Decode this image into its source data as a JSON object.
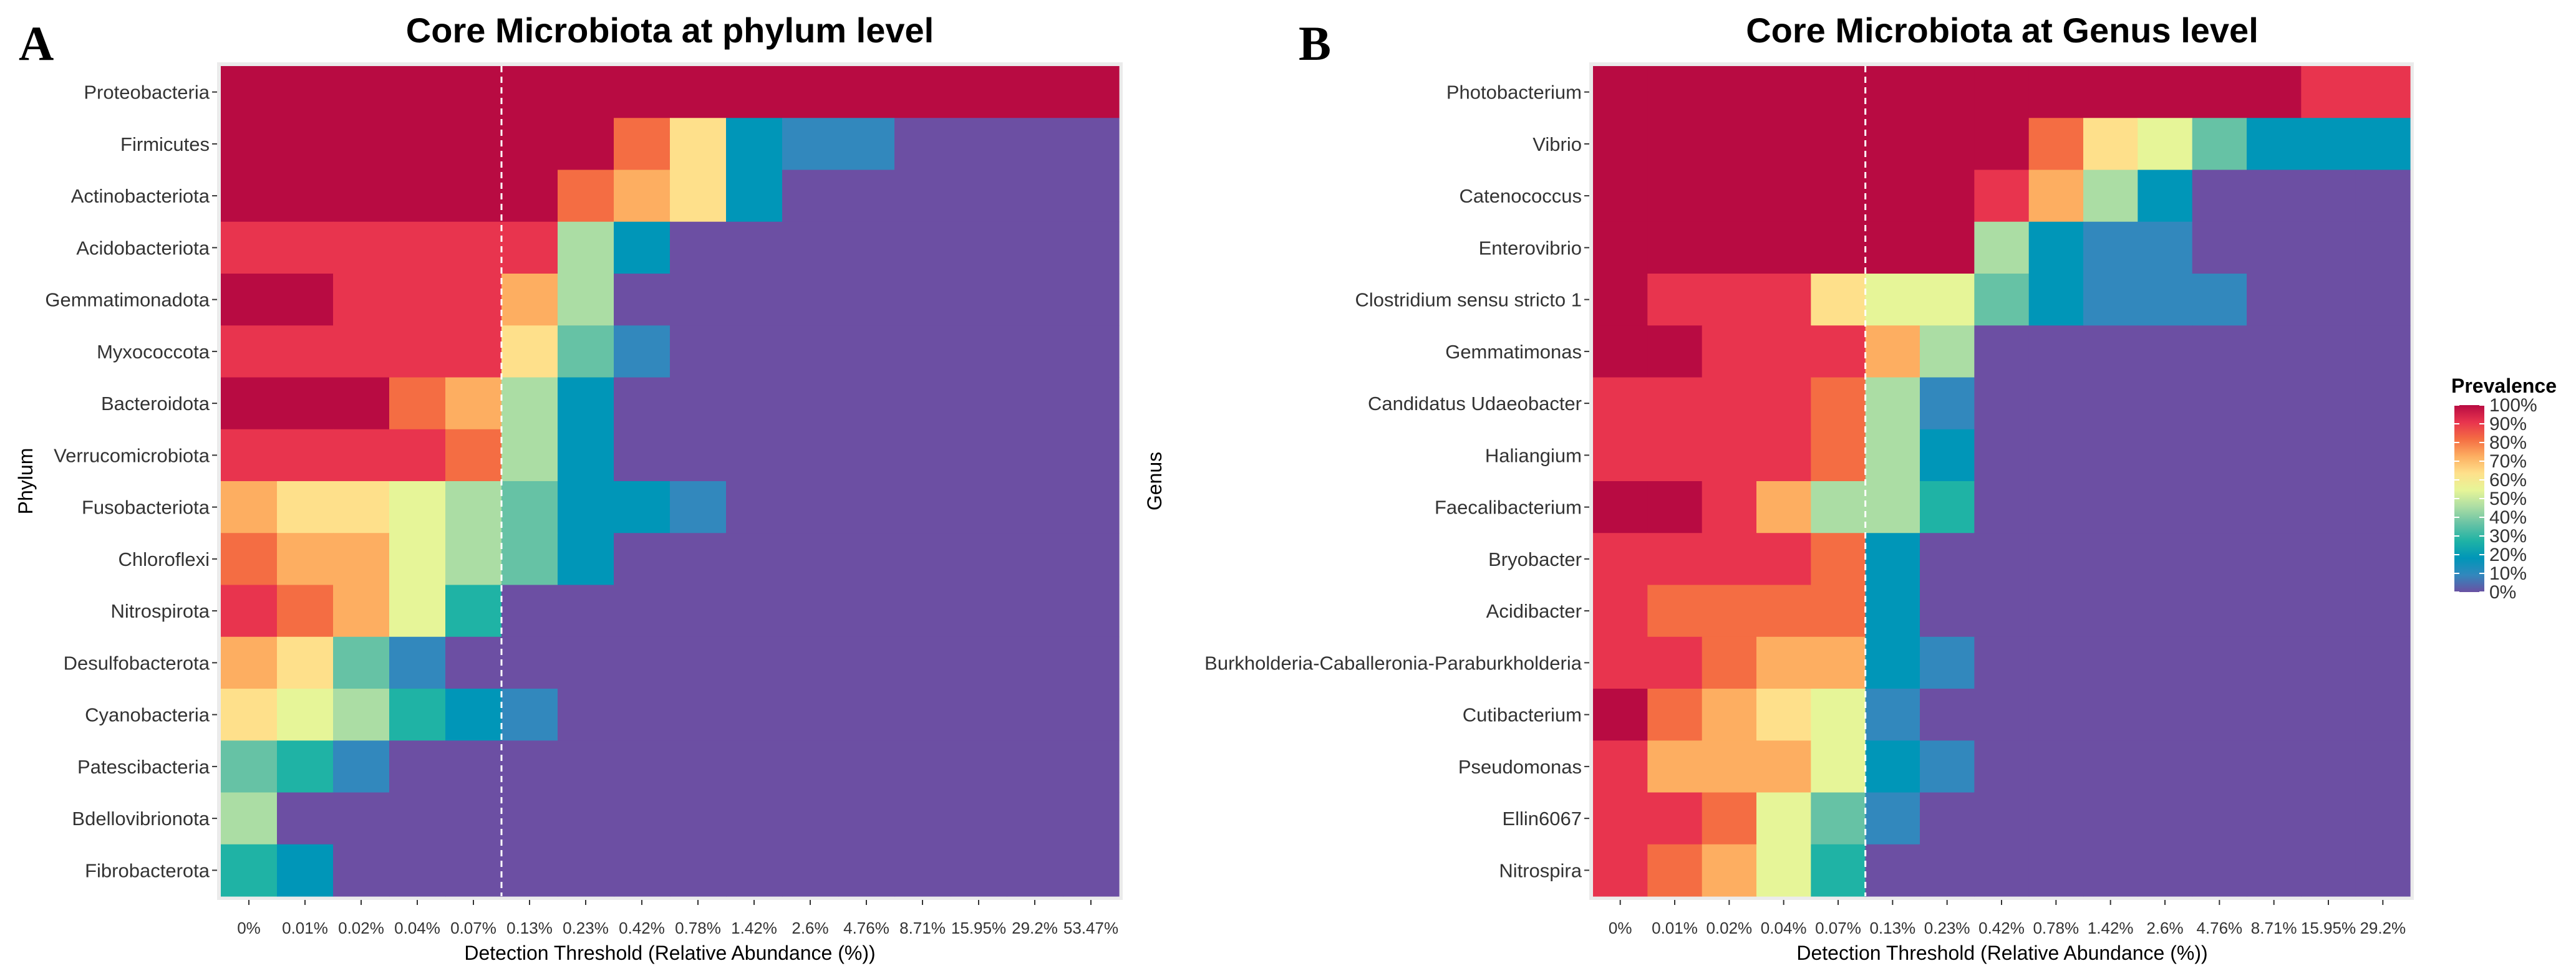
{
  "legend": {
    "title": "Prevalence",
    "labels": [
      "100%",
      "90%",
      "80%",
      "70%",
      "60%",
      "50%",
      "40%",
      "30%",
      "20%",
      "10%",
      "0%"
    ]
  },
  "colors": {
    "background": "#ffffff",
    "panel_background": "#ebebeb",
    "cell_zero": "#6c4fa3",
    "dashed_line": "#ffffff",
    "palette": [
      "#6a51a3",
      "#3288bd",
      "#0096b8",
      "#1fb3a5",
      "#66c2a5",
      "#abdda4",
      "#e6f598",
      "#fee08b",
      "#fdae61",
      "#f46d43",
      "#e8344e",
      "#b80b42"
    ]
  },
  "chart_data": [
    {
      "type": "heatmap",
      "panel_label": "A",
      "title": "Core Microbiota at phylum level",
      "xlabel": "Detection Threshold (Relative Abundance (%))",
      "ylabel": "Phylum",
      "legend_title": "Prevalence",
      "value_units": "percent prevalence",
      "dashed_line_after_category": "0.07%",
      "x": [
        "0%",
        "0.01%",
        "0.02%",
        "0.04%",
        "0.07%",
        "0.13%",
        "0.23%",
        "0.42%",
        "0.78%",
        "1.42%",
        "2.6%",
        "4.76%",
        "8.71%",
        "15.95%",
        "29.2%",
        "53.47%"
      ],
      "y": [
        "Proteobacteria",
        "Firmicutes",
        "Actinobacteriota",
        "Acidobacteriota",
        "Gemmatimonadota",
        "Myxococcota",
        "Bacteroidota",
        "Verrucomicrobiota",
        "Fusobacteriota",
        "Chloroflexi",
        "Nitrospirota",
        "Desulfobacterota",
        "Cyanobacteria",
        "Patescibacteria",
        "Bdellovibrionota",
        "Fibrobacterota"
      ],
      "z": [
        [
          100,
          100,
          100,
          100,
          100,
          100,
          100,
          100,
          100,
          100,
          100,
          100,
          100,
          100,
          100,
          100
        ],
        [
          100,
          100,
          100,
          100,
          100,
          100,
          100,
          78,
          60,
          22,
          13,
          8,
          0,
          0,
          0,
          0
        ],
        [
          100,
          100,
          100,
          100,
          100,
          100,
          85,
          72,
          68,
          15,
          0,
          0,
          0,
          0,
          0,
          0
        ],
        [
          95,
          95,
          95,
          95,
          95,
          92,
          45,
          15,
          0,
          0,
          0,
          0,
          0,
          0,
          0,
          0
        ],
        [
          100,
          100,
          95,
          95,
          95,
          72,
          42,
          0,
          0,
          0,
          0,
          0,
          0,
          0,
          0,
          0
        ],
        [
          95,
          95,
          95,
          95,
          95,
          62,
          35,
          8,
          0,
          0,
          0,
          0,
          0,
          0,
          0,
          0
        ],
        [
          100,
          100,
          100,
          82,
          70,
          42,
          22,
          0,
          0,
          0,
          0,
          0,
          0,
          0,
          0,
          0
        ],
        [
          95,
          95,
          95,
          95,
          85,
          42,
          15,
          0,
          0,
          0,
          0,
          0,
          0,
          0,
          0,
          0
        ],
        [
          75,
          68,
          62,
          55,
          48,
          38,
          15,
          15,
          8,
          0,
          0,
          0,
          0,
          0,
          0,
          0
        ],
        [
          85,
          70,
          70,
          55,
          45,
          38,
          15,
          0,
          0,
          0,
          0,
          0,
          0,
          0,
          0,
          0
        ],
        [
          90,
          82,
          75,
          55,
          28,
          0,
          0,
          0,
          0,
          0,
          0,
          0,
          0,
          0,
          0,
          0
        ],
        [
          75,
          62,
          38,
          8,
          0,
          0,
          0,
          0,
          0,
          0,
          0,
          0,
          0,
          0,
          0,
          0
        ],
        [
          62,
          52,
          42,
          28,
          20,
          8,
          0,
          0,
          0,
          0,
          0,
          0,
          0,
          0,
          0,
          0
        ],
        [
          35,
          28,
          8,
          0,
          0,
          0,
          0,
          0,
          0,
          0,
          0,
          0,
          0,
          0,
          0,
          0
        ],
        [
          45,
          0,
          0,
          0,
          0,
          0,
          0,
          0,
          0,
          0,
          0,
          0,
          0,
          0,
          0,
          0
        ],
        [
          28,
          15,
          0,
          0,
          0,
          0,
          0,
          0,
          0,
          0,
          0,
          0,
          0,
          0,
          0,
          0
        ]
      ]
    },
    {
      "type": "heatmap",
      "panel_label": "B",
      "title": "Core Microbiota at Genus level",
      "xlabel": "Detection Threshold (Relative Abundance (%))",
      "ylabel": "Genus",
      "legend_title": "Prevalence",
      "value_units": "percent prevalence",
      "dashed_line_after_category": "0.07%",
      "x": [
        "0%",
        "0.01%",
        "0.02%",
        "0.04%",
        "0.07%",
        "0.13%",
        "0.23%",
        "0.42%",
        "0.78%",
        "1.42%",
        "2.6%",
        "4.76%",
        "8.71%",
        "15.95%",
        "29.2%"
      ],
      "y": [
        "Photobacterium",
        "Vibrio",
        "Catenococcus",
        "Enterovibrio",
        "Clostridium sensu stricto 1",
        "Gemmatimonas",
        "Candidatus Udaeobacter",
        "Haliangium",
        "Faecalibacterium",
        "Bryobacter",
        "Acidibacter",
        "Burkholderia-Caballeronia-Paraburkholderia",
        "Cutibacterium",
        "Pseudomonas",
        "Ellin6067",
        "Nitrospira"
      ],
      "z": [
        [
          100,
          100,
          100,
          100,
          100,
          100,
          100,
          100,
          100,
          100,
          100,
          100,
          100,
          92,
          92
        ],
        [
          100,
          100,
          100,
          100,
          100,
          100,
          100,
          100,
          85,
          68,
          52,
          32,
          15,
          15,
          15
        ],
        [
          100,
          100,
          100,
          100,
          100,
          100,
          100,
          92,
          75,
          48,
          22,
          0,
          0,
          0,
          0
        ],
        [
          100,
          100,
          100,
          100,
          100,
          100,
          100,
          48,
          15,
          8,
          8,
          0,
          0,
          0,
          0
        ],
        [
          100,
          95,
          95,
          95,
          62,
          58,
          58,
          38,
          15,
          8,
          8,
          8,
          0,
          0,
          0
        ],
        [
          100,
          100,
          95,
          95,
          95,
          72,
          45,
          0,
          0,
          0,
          0,
          0,
          0,
          0,
          0
        ],
        [
          95,
          95,
          95,
          95,
          85,
          42,
          8,
          0,
          0,
          0,
          0,
          0,
          0,
          0,
          0
        ],
        [
          95,
          95,
          95,
          95,
          78,
          42,
          15,
          0,
          0,
          0,
          0,
          0,
          0,
          0,
          0
        ],
        [
          100,
          100,
          95,
          72,
          48,
          45,
          28,
          0,
          0,
          0,
          0,
          0,
          0,
          0,
          0
        ],
        [
          95,
          95,
          95,
          88,
          78,
          22,
          0,
          0,
          0,
          0,
          0,
          0,
          0,
          0,
          0
        ],
        [
          95,
          82,
          82,
          82,
          78,
          22,
          0,
          0,
          0,
          0,
          0,
          0,
          0,
          0,
          0
        ],
        [
          95,
          95,
          82,
          72,
          72,
          22,
          8,
          0,
          0,
          0,
          0,
          0,
          0,
          0,
          0
        ],
        [
          100,
          85,
          75,
          65,
          52,
          8,
          0,
          0,
          0,
          0,
          0,
          0,
          0,
          0,
          0
        ],
        [
          95,
          75,
          75,
          72,
          52,
          15,
          8,
          0,
          0,
          0,
          0,
          0,
          0,
          0,
          0
        ],
        [
          95,
          95,
          85,
          58,
          38,
          8,
          0,
          0,
          0,
          0,
          0,
          0,
          0,
          0,
          0
        ],
        [
          95,
          85,
          75,
          55,
          28,
          0,
          0,
          0,
          0,
          0,
          0,
          0,
          0,
          0,
          0
        ]
      ]
    }
  ]
}
